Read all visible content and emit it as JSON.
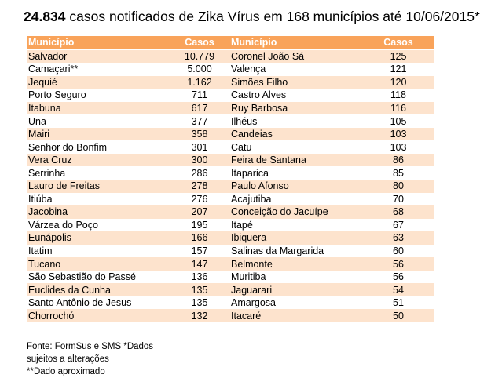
{
  "title": {
    "count": "24.834",
    "rest": " casos notificados de Zika Vírus em 168 municípios até 10/06/2015*"
  },
  "table": {
    "headers": [
      "Município",
      "Casos",
      "Município",
      "Casos"
    ],
    "rows": [
      [
        "Salvador",
        "10.779",
        "Coronel João Sá",
        "125"
      ],
      [
        "Camaçari**",
        "5.000",
        "Valença",
        "121"
      ],
      [
        "Jequié",
        "1.162",
        "Simões Filho",
        "120"
      ],
      [
        "Porto Seguro",
        "711",
        "Castro Alves",
        "118"
      ],
      [
        "Itabuna",
        "617",
        "Ruy Barbosa",
        "116"
      ],
      [
        "Una",
        "377",
        "Ilhéus",
        "105"
      ],
      [
        "Mairi",
        "358",
        "Candeias",
        "103"
      ],
      [
        "Senhor do Bonfim",
        "301",
        "Catu",
        "103"
      ],
      [
        "Vera Cruz",
        "300",
        "Feira de Santana",
        "86"
      ],
      [
        "Serrinha",
        "286",
        "Itaparica",
        "85"
      ],
      [
        "Lauro de Freitas",
        "278",
        "Paulo Afonso",
        "80"
      ],
      [
        "Itiúba",
        "276",
        "Acajutiba",
        "70"
      ],
      [
        "Jacobina",
        "207",
        "Conceição do Jacuípe",
        "68"
      ],
      [
        "Várzea do Poço",
        "195",
        "Itapé",
        "67"
      ],
      [
        "Eunápolis",
        "166",
        "Ibiquera",
        "63"
      ],
      [
        "Itatim",
        "157",
        "Salinas da Margarida",
        "60"
      ],
      [
        "Tucano",
        "147",
        "Belmonte",
        "56"
      ],
      [
        "São Sebastião do Passé",
        "136",
        "Muritiba",
        "56"
      ],
      [
        "Euclides da Cunha",
        "135",
        "Jaguarari",
        "54"
      ],
      [
        "Santo Antônio de Jesus",
        "135",
        "Amargosa",
        "51"
      ],
      [
        "Chorrochó",
        "132",
        "Itacaré",
        "50"
      ]
    ]
  },
  "footnote": {
    "line1": "Fonte: FormSus e SMS    *Dados",
    "line2": "sujeitos a alterações",
    "line3": "**Dado aproximado"
  }
}
